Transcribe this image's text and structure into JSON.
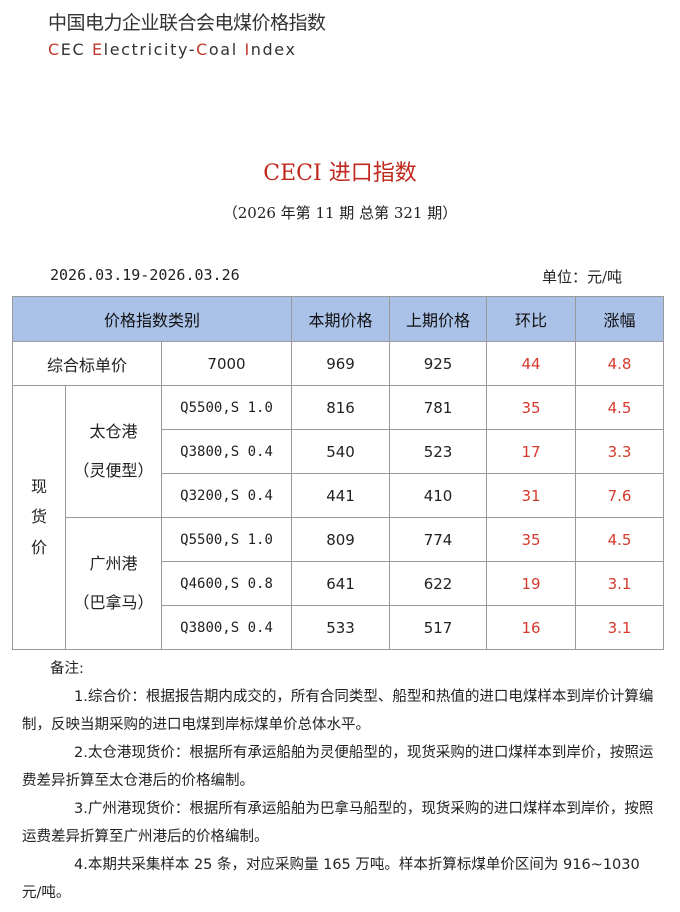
{
  "header": {
    "org_cn": "中国电力企业联合会电煤价格指数",
    "org_en": {
      "c1": "C",
      "t1": "EC ",
      "c2": "E",
      "t2": "lectricity-",
      "c3": "C",
      "t3": "oal ",
      "c4": "I",
      "t4": "ndex"
    }
  },
  "title": "CECI 进口指数",
  "issue": "（2026 年第 11 期   总第 321 期）",
  "period": "2026.03.19-2026.03.26",
  "unit": "单位：元/吨",
  "table": {
    "headers": {
      "category": "价格指数类别",
      "current": "本期价格",
      "previous": "上期价格",
      "mom": "环比",
      "change": "涨幅"
    },
    "composite": {
      "label": "综合标单价",
      "spec": "7000",
      "current": "969",
      "previous": "925",
      "mom": "44",
      "change": "4.8"
    },
    "spot_group": {
      "char1": "现",
      "char2": "货",
      "char3": "价"
    },
    "ports": [
      {
        "name": "太仓港",
        "type": "（灵便型）",
        "rows": [
          {
            "spec": "Q5500,S 1.0",
            "current": "816",
            "previous": "781",
            "mom": "35",
            "change": "4.5"
          },
          {
            "spec": "Q3800,S 0.4",
            "current": "540",
            "previous": "523",
            "mom": "17",
            "change": "3.3"
          },
          {
            "spec": "Q3200,S 0.4",
            "current": "441",
            "previous": "410",
            "mom": "31",
            "change": "7.6"
          }
        ]
      },
      {
        "name": "广州港",
        "type": "（巴拿马）",
        "rows": [
          {
            "spec": "Q5500,S 1.0",
            "current": "809",
            "previous": "774",
            "mom": "35",
            "change": "4.5"
          },
          {
            "spec": "Q4600,S 0.8",
            "current": "641",
            "previous": "622",
            "mom": "19",
            "change": "3.1"
          },
          {
            "spec": "Q3800,S 0.4",
            "current": "533",
            "previous": "517",
            "mom": "16",
            "change": "3.1"
          }
        ]
      }
    ]
  },
  "notes": {
    "title": "备注:",
    "items": [
      "1.综合价：根据报告期内成交的，所有合同类型、船型和热值的进口电煤样本到岸价计算编制，反映当期采购的进口电煤到岸标煤单价总体水平。",
      "2.太仓港现货价：根据所有承运船舶为灵便船型的，现货采购的进口煤样本到岸价，按照运费差异折算至太仓港后的价格编制。",
      "3.广州港现货价：根据所有承运船舶为巴拿马船型的，现货采购的进口煤样本到岸价，按照运费差异折算至广州港后的价格编制。",
      "4.本期共采集样本 25 条，对应采购量 165 万吨。样本折算标煤单价区间为 916~1030 元/吨。"
    ]
  },
  "colors": {
    "header_bg": "#aac1e8",
    "accent_red": "#d63a2c",
    "title_red": "#c0281e"
  }
}
